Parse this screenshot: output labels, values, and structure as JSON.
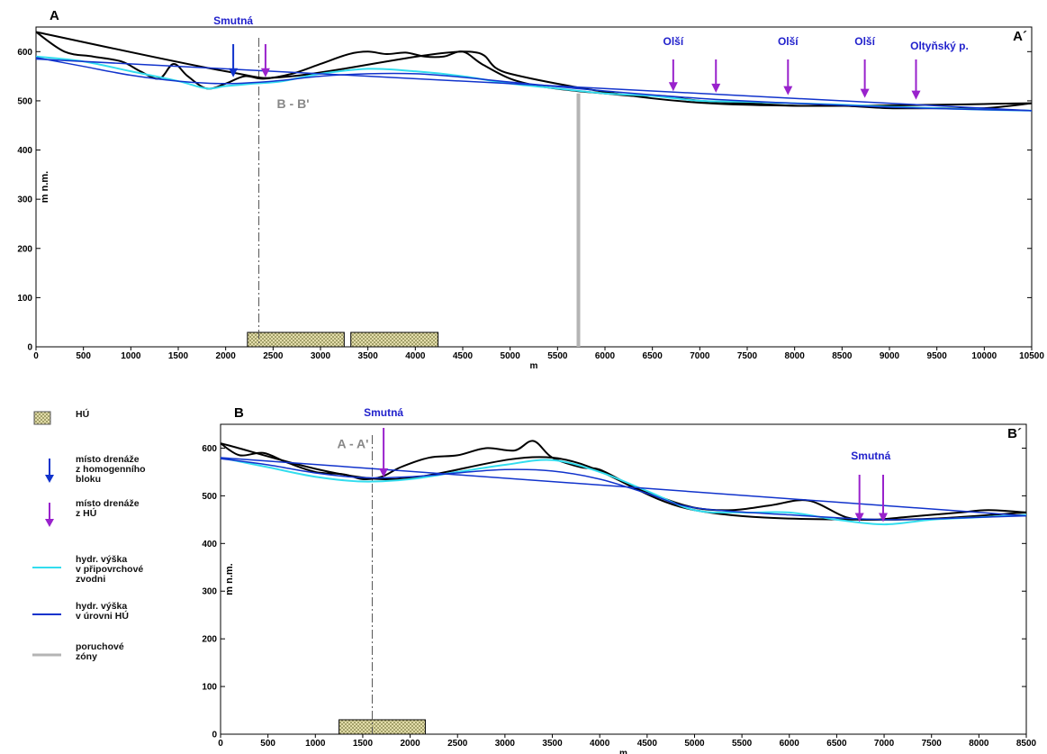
{
  "colors": {
    "terrain": "#000000",
    "near_surface_head": "#33ddee",
    "hu_head": "#1133cc",
    "drain_homogeneous": "#1133cc",
    "drain_hu": "#9922cc",
    "fault_zone": "#b4b4b4",
    "hu_fill": "#ece5b4",
    "section_marker": "#888888",
    "place_label": "#2222cc"
  },
  "legend": {
    "items": [
      {
        "id": "hu",
        "symbol": "hatched-box",
        "lines": [
          "HÚ"
        ]
      },
      {
        "id": "drain_homo",
        "symbol": "blue-arrow",
        "lines": [
          "místo drenáže",
          "z homogenního",
          "bloku"
        ]
      },
      {
        "id": "drain_hu",
        "symbol": "purple-arrow",
        "lines": [
          "místo drenáže",
          "z HÚ"
        ]
      },
      {
        "id": "near_surface",
        "symbol": "cyan-line",
        "lines": [
          "hydr. výška",
          "v připovrchové",
          "zvodni"
        ]
      },
      {
        "id": "hu_level",
        "symbol": "blue-line",
        "lines": [
          "hydr. výška",
          "v úrovni HÚ"
        ]
      },
      {
        "id": "fault",
        "symbol": "gray-line",
        "lines": [
          "poruchové",
          "zóny"
        ]
      }
    ]
  },
  "chart_data": [
    {
      "type": "line",
      "section": "A - A´",
      "label_left": "A",
      "label_right": "A´",
      "xlabel": "m",
      "ylabel": "m n.m.",
      "xlim": [
        0,
        10500
      ],
      "ylim": [
        0,
        650
      ],
      "xticks": [
        0,
        500,
        1000,
        1500,
        2000,
        2500,
        3000,
        3500,
        4000,
        4500,
        5000,
        5500,
        6000,
        6500,
        7000,
        7500,
        8000,
        8500,
        9000,
        9500,
        10000,
        10500
      ],
      "yticks": [
        0,
        100,
        200,
        300,
        400,
        500,
        600
      ],
      "series": [
        {
          "role": "terrain",
          "x": [
            0,
            300,
            600,
            900,
            1100,
            1300,
            1450,
            1600,
            1800,
            2000,
            2200,
            2400,
            2700,
            3000,
            3300,
            3500,
            3700,
            3900,
            4100,
            4300,
            4500,
            4700,
            5000,
            5300,
            5700,
            6000,
            6300,
            6600,
            7000,
            7500,
            8000,
            8500,
            9000,
            9500,
            10000,
            10500
          ],
          "y": [
            640,
            600,
            590,
            580,
            560,
            545,
            575,
            550,
            525,
            535,
            550,
            545,
            555,
            575,
            595,
            600,
            595,
            598,
            590,
            590,
            600,
            575,
            545,
            530,
            520,
            515,
            510,
            510,
            500,
            495,
            490,
            490,
            485,
            485,
            485,
            495
          ]
        },
        {
          "role": "terrain_trend",
          "x": [
            0,
            2000,
            2700,
            4500,
            5000,
            6500,
            8000,
            10500
          ],
          "y": [
            640,
            560,
            550,
            600,
            555,
            505,
            490,
            495
          ]
        },
        {
          "role": "near_surface_head",
          "x": [
            0,
            500,
            1000,
            1500,
            1800,
            2000,
            2300,
            2600,
            3000,
            3500,
            4000,
            4500,
            5000,
            5500,
            6000,
            6500,
            7000,
            7500,
            8000,
            8500,
            9000,
            9500,
            10000,
            10500
          ],
          "y": [
            590,
            580,
            560,
            540,
            525,
            530,
            535,
            540,
            555,
            565,
            560,
            550,
            535,
            525,
            515,
            510,
            500,
            498,
            495,
            492,
            488,
            485,
            482,
            480
          ]
        },
        {
          "role": "hu_head",
          "x": [
            0,
            10500
          ],
          "y": [
            585,
            480
          ]
        },
        {
          "role": "hu_head",
          "x": [
            0,
            500,
            1000,
            1500,
            2000,
            2500,
            3000,
            3500,
            4000,
            4500,
            5000,
            6000,
            7000,
            8000,
            9000,
            10000,
            10500
          ],
          "y": [
            588,
            570,
            552,
            540,
            535,
            540,
            550,
            555,
            555,
            548,
            538,
            520,
            505,
            495,
            487,
            482,
            480
          ]
        }
      ],
      "faults": [
        5720
      ],
      "section_crossing": {
        "x": 2350,
        "label": "B - B'"
      },
      "hu_bodies": [
        {
          "x0": 2230,
          "x1": 3250
        },
        {
          "x0": 3320,
          "x1": 4240
        }
      ],
      "drains": [
        {
          "kind": "homogeneous",
          "x": 2080,
          "label": "Smutná"
        },
        {
          "kind": "hu",
          "x": 2420
        },
        {
          "kind": "hu",
          "x": 6720,
          "label": "Olší"
        },
        {
          "kind": "hu",
          "x": 7170
        },
        {
          "kind": "hu",
          "x": 7930,
          "label": "Olší"
        },
        {
          "kind": "hu",
          "x": 8740,
          "label": "Olší"
        },
        {
          "kind": "hu",
          "x": 9280,
          "label": "Oltyňský p."
        }
      ]
    },
    {
      "type": "line",
      "section": "B - B´",
      "label_left": "B",
      "label_right": "B´",
      "xlabel": "m",
      "ylabel": "m n.m.",
      "xlim": [
        0,
        8500
      ],
      "ylim": [
        0,
        650
      ],
      "xticks": [
        0,
        500,
        1000,
        1500,
        2000,
        2500,
        3000,
        3500,
        4000,
        4500,
        5000,
        5500,
        6000,
        6500,
        7000,
        7500,
        8000,
        8500
      ],
      "yticks": [
        0,
        100,
        200,
        300,
        400,
        500,
        600
      ],
      "series": [
        {
          "role": "terrain",
          "x": [
            0,
            200,
            450,
            700,
            1000,
            1300,
            1500,
            1700,
            1900,
            2200,
            2500,
            2800,
            3100,
            3300,
            3500,
            3800,
            4000,
            4300,
            4600,
            5000,
            5400,
            5800,
            6200,
            6600,
            6900,
            7200,
            7500,
            7800,
            8100,
            8500
          ],
          "y": [
            610,
            585,
            590,
            570,
            550,
            545,
            535,
            540,
            560,
            580,
            585,
            600,
            595,
            615,
            580,
            560,
            555,
            525,
            500,
            475,
            470,
            480,
            490,
            455,
            450,
            455,
            460,
            465,
            470,
            465
          ]
        },
        {
          "role": "terrain_trend",
          "x": [
            0,
            1700,
            3500,
            5000,
            7000,
            8500
          ],
          "y": [
            610,
            535,
            580,
            470,
            450,
            465
          ]
        },
        {
          "role": "near_surface_head",
          "x": [
            0,
            500,
            1000,
            1500,
            2000,
            2500,
            3000,
            3500,
            4000,
            4500,
            5000,
            5500,
            6000,
            6500,
            7000,
            7500,
            8000,
            8500
          ],
          "y": [
            580,
            560,
            540,
            530,
            535,
            550,
            565,
            575,
            550,
            510,
            470,
            465,
            465,
            450,
            440,
            450,
            455,
            460
          ]
        },
        {
          "role": "hu_head",
          "x": [
            0,
            8500
          ],
          "y": [
            580,
            458
          ]
        },
        {
          "role": "hu_head",
          "x": [
            0,
            500,
            1000,
            1500,
            2000,
            2500,
            3000,
            3500,
            4000,
            4500,
            5000,
            6000,
            7000,
            8000,
            8500
          ],
          "y": [
            578,
            565,
            548,
            538,
            540,
            548,
            555,
            552,
            535,
            505,
            475,
            460,
            450,
            455,
            458
          ]
        }
      ],
      "faults": [],
      "section_crossing": {
        "x": 1600,
        "label": "A - A'"
      },
      "hu_bodies": [
        {
          "x0": 1250,
          "x1": 2160
        }
      ],
      "drains": [
        {
          "kind": "hu",
          "x": 1720,
          "label": "Smutná"
        },
        {
          "kind": "hu",
          "x": 6740,
          "label": "Smutná"
        },
        {
          "kind": "hu",
          "x": 6990
        }
      ]
    }
  ]
}
